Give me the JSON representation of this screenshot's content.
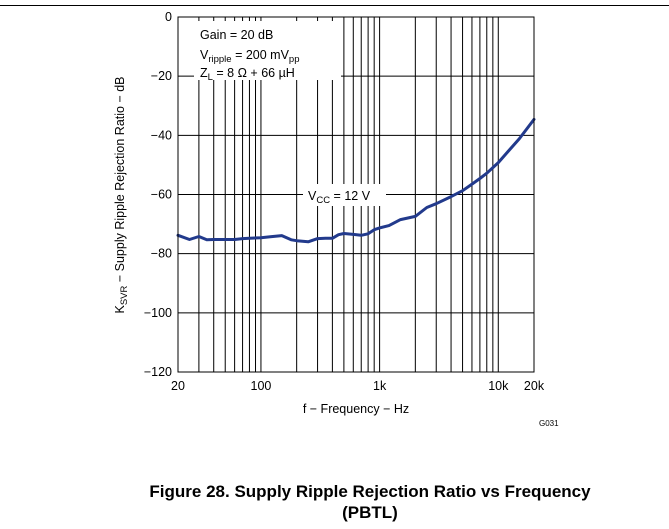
{
  "figure_caption_line1": "Figure 28. Supply Ripple Rejection Ratio vs Frequency",
  "figure_caption_line2": "(PBTL)",
  "graph_code": "G031",
  "colors": {
    "curve": "#223a8c",
    "grid": "#000000",
    "frame": "#000000"
  },
  "annotations": {
    "gain": "Gain = 20 dB",
    "vripple": {
      "main": "V",
      "sub": "ripple",
      "mid": " = 200 mV",
      "sub2": "pp"
    },
    "zl": {
      "main": "Z",
      "sub": "L",
      "rest": " = 8 Ω + 66 µH"
    },
    "vcc": {
      "main": "V",
      "sub": "CC",
      "rest": " = 12 V"
    }
  },
  "chart_data": {
    "type": "line",
    "xscale": "log",
    "grid": true,
    "xlabel": "f − Frequency − Hz",
    "ylabel": {
      "main": "K",
      "sub": "SVR",
      "rest": " − Supply Ripple Rejection Ratio − dB"
    },
    "xlim": [
      20,
      20000
    ],
    "ylim": [
      -120,
      0
    ],
    "x_ticks": [
      20,
      100,
      1000,
      10000,
      20000
    ],
    "x_tick_labels": [
      "20",
      "100",
      "1k",
      "10k",
      "20k"
    ],
    "y_ticks": [
      0,
      -20,
      -40,
      -60,
      -80,
      -100,
      -120
    ],
    "y_tick_labels": [
      "0",
      "−20",
      "−40",
      "−60",
      "−80",
      "−100",
      "−120"
    ],
    "series": [
      {
        "name": "V_CC = 12 V",
        "x": [
          20,
          25,
          30,
          35,
          40,
          50,
          60,
          70,
          80,
          100,
          120,
          150,
          180,
          200,
          250,
          300,
          350,
          400,
          450,
          500,
          600,
          700,
          800,
          900,
          1000,
          1200,
          1500,
          2000,
          2500,
          3000,
          4000,
          5000,
          6000,
          7000,
          8000,
          10000,
          12000,
          15000,
          20000
        ],
        "y": [
          -73.8,
          -75.2,
          -74.2,
          -75.3,
          -75.2,
          -75.2,
          -75.2,
          -74.9,
          -74.8,
          -74.6,
          -74.3,
          -73.9,
          -75.3,
          -75.6,
          -76.0,
          -74.9,
          -74.8,
          -74.8,
          -73.6,
          -73.2,
          -73.5,
          -73.8,
          -73.3,
          -71.9,
          -71.3,
          -70.5,
          -68.5,
          -67.4,
          -64.4,
          -63.1,
          -60.7,
          -58.7,
          -56.5,
          -54.6,
          -52.8,
          -49.2,
          -45.6,
          -41.2,
          -34.6
        ]
      }
    ]
  }
}
